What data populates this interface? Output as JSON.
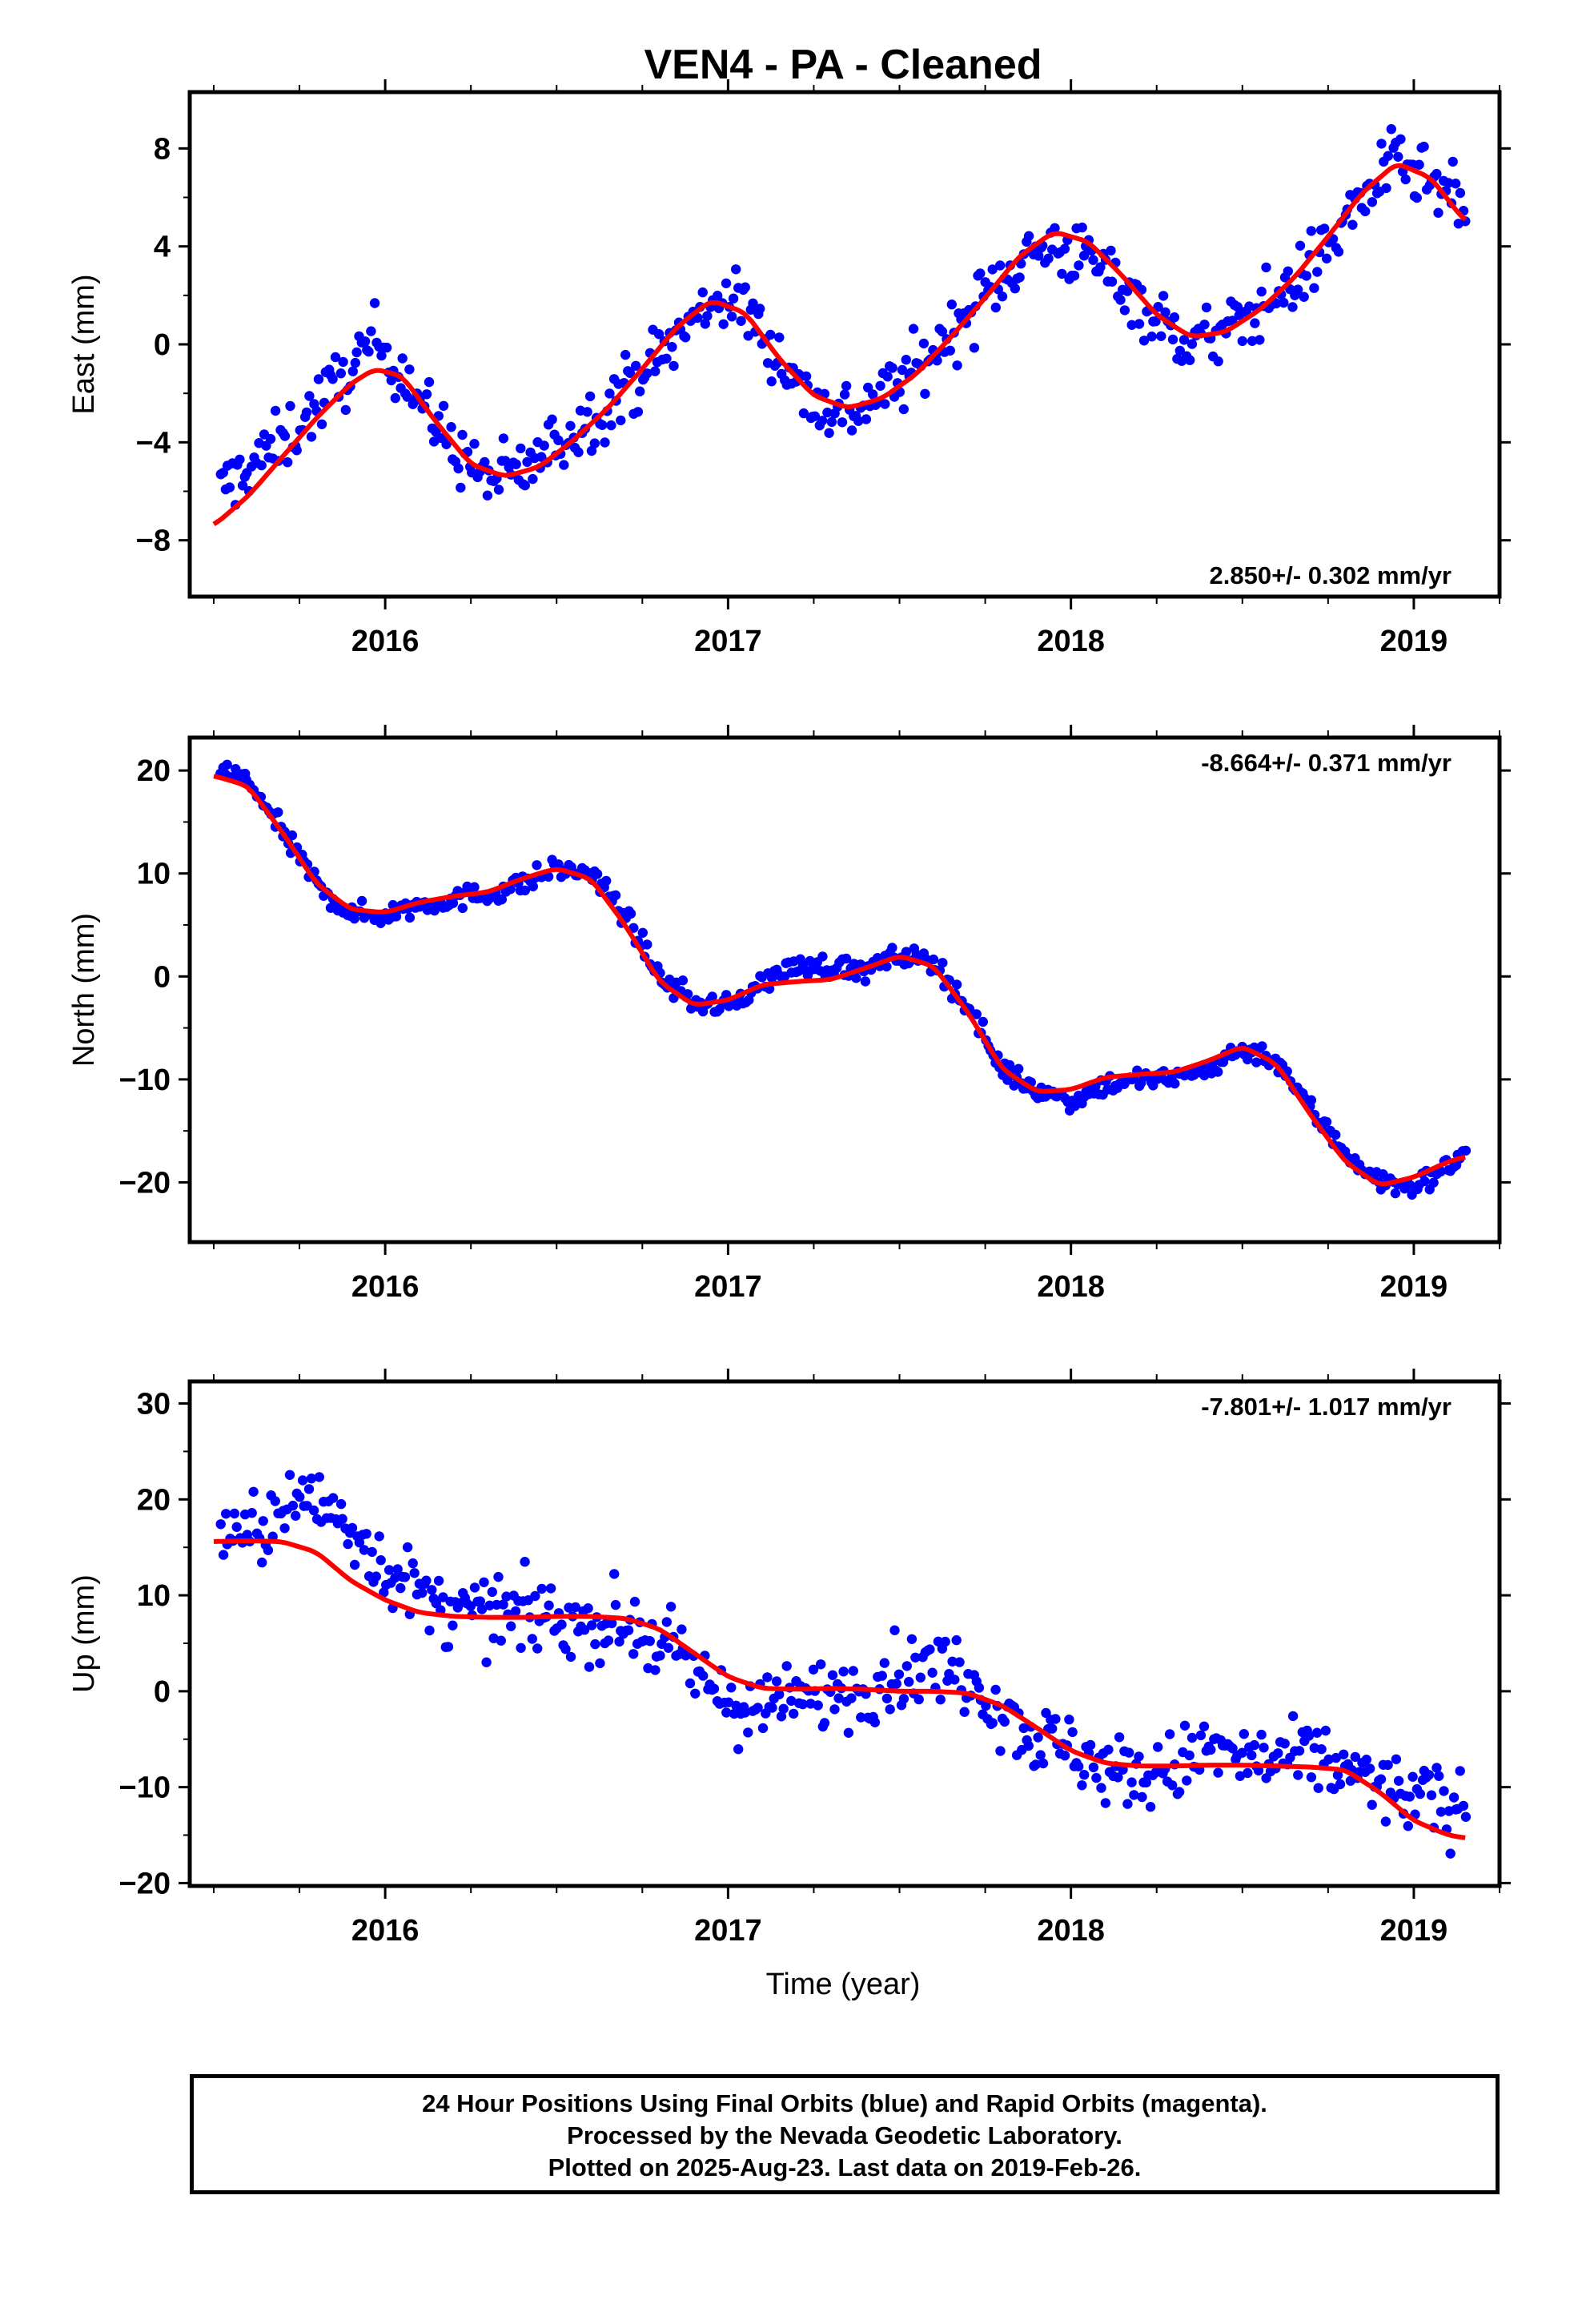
{
  "title": "VEN4  - PA - Cleaned",
  "xlabel": "Time (year)",
  "footer": {
    "line1": "24 Hour Positions Using Final Orbits (blue) and Rapid Orbits (magenta).",
    "line2": "Processed by the Nevada Geodetic Laboratory.",
    "line3": "Plotted on 2025-Aug-23. Last data on 2019-Feb-26."
  },
  "colors": {
    "points": "#0000ff",
    "fit": "#ff0000",
    "frame": "#000000"
  },
  "chart_data": [
    {
      "type": "scatter",
      "ylabel": "East (mm)",
      "rate_label": "2.850+/- 0.302 mm/yr",
      "rate_position": "bottom-right",
      "xlim": [
        2015.43,
        2019.25
      ],
      "ylim": [
        -10.3,
        10.3
      ],
      "xticks": [
        2016,
        2017,
        2018,
        2019
      ],
      "yticks": [
        -8,
        -4,
        0,
        4,
        8
      ],
      "series": [
        {
          "kind": "points",
          "scatter": 1.1,
          "x": [
            2015.52,
            2015.6,
            2015.7,
            2015.8,
            2015.9,
            2015.97,
            2016.05,
            2016.13,
            2016.22,
            2016.3,
            2016.4,
            2016.5,
            2016.6,
            2016.7,
            2016.8,
            2016.9,
            2016.97,
            2017.05,
            2017.15,
            2017.25,
            2017.35,
            2017.45,
            2017.55,
            2017.65,
            2017.75,
            2017.85,
            2017.95,
            2018.05,
            2018.15,
            2018.25,
            2018.35,
            2018.45,
            2018.55,
            2018.65,
            2018.75,
            2018.85,
            2018.95,
            2019.05,
            2019.15
          ],
          "y": [
            -6.0,
            -5.0,
            -4.0,
            -2.5,
            -1.0,
            0.2,
            -1.0,
            -3.0,
            -4.5,
            -5.5,
            -5.2,
            -4.0,
            -3.0,
            -1.8,
            -0.5,
            1.0,
            2.0,
            1.5,
            -0.5,
            -2.5,
            -2.8,
            -2.0,
            -1.0,
            0.5,
            2.0,
            3.5,
            4.0,
            3.5,
            2.5,
            1.0,
            0.0,
            0.5,
            1.5,
            2.5,
            4.0,
            6.0,
            7.5,
            6.5,
            5.5
          ]
        },
        {
          "kind": "line",
          "x": [
            2015.5,
            2015.6,
            2015.7,
            2015.8,
            2015.9,
            2015.97,
            2016.05,
            2016.15,
            2016.25,
            2016.35,
            2016.45,
            2016.55,
            2016.65,
            2016.75,
            2016.85,
            2016.95,
            2017.05,
            2017.15,
            2017.25,
            2017.35,
            2017.45,
            2017.55,
            2017.65,
            2017.75,
            2017.85,
            2017.95,
            2018.05,
            2018.15,
            2018.25,
            2018.35,
            2018.45,
            2018.55,
            2018.65,
            2018.75,
            2018.85,
            2018.95,
            2019.05,
            2019.15
          ],
          "y": [
            -7.4,
            -6.2,
            -4.6,
            -3.0,
            -1.6,
            -1.0,
            -1.3,
            -3.2,
            -4.9,
            -5.4,
            -5.0,
            -3.9,
            -2.6,
            -1.0,
            0.7,
            1.8,
            1.3,
            -0.6,
            -2.1,
            -2.6,
            -2.2,
            -1.2,
            0.3,
            1.9,
            3.6,
            4.6,
            4.2,
            2.8,
            1.2,
            0.3,
            0.5,
            1.4,
            2.7,
            4.4,
            6.2,
            7.4,
            6.8,
            5.0
          ]
        }
      ]
    },
    {
      "type": "scatter",
      "ylabel": "North (mm)",
      "rate_label": "-8.664+/- 0.371 mm/yr",
      "rate_position": "top-right",
      "xlim": [
        2015.43,
        2019.25
      ],
      "ylim": [
        -25.8,
        23.2
      ],
      "xticks": [
        2016,
        2017,
        2018,
        2019
      ],
      "yticks": [
        -20,
        -10,
        0,
        10,
        20
      ],
      "series": [
        {
          "kind": "points",
          "scatter": 0.9,
          "x": [
            2015.52,
            2015.6,
            2015.7,
            2015.8,
            2015.9,
            2016.0,
            2016.1,
            2016.2,
            2016.3,
            2016.4,
            2016.5,
            2016.6,
            2016.7,
            2016.8,
            2016.9,
            2017.0,
            2017.1,
            2017.2,
            2017.3,
            2017.4,
            2017.5,
            2017.6,
            2017.7,
            2017.8,
            2017.9,
            2018.0,
            2018.1,
            2018.2,
            2018.3,
            2018.4,
            2018.5,
            2018.6,
            2018.7,
            2018.8,
            2018.9,
            2019.0,
            2019.1,
            2019.15
          ],
          "y": [
            20.0,
            19.0,
            14.0,
            9.0,
            6.0,
            6.0,
            7.0,
            7.5,
            8.0,
            9.0,
            10.5,
            10.0,
            6.0,
            0.0,
            -2.5,
            -3.0,
            -0.5,
            1.0,
            1.0,
            0.5,
            2.0,
            1.5,
            -3.0,
            -9.0,
            -11.0,
            -12.0,
            -10.5,
            -10.0,
            -10.0,
            -9.0,
            -7.0,
            -8.0,
            -13.0,
            -17.0,
            -20.0,
            -20.5,
            -18.5,
            -17.0
          ]
        },
        {
          "kind": "line",
          "x": [
            2015.5,
            2015.6,
            2015.7,
            2015.8,
            2015.9,
            2016.0,
            2016.1,
            2016.2,
            2016.3,
            2016.4,
            2016.5,
            2016.6,
            2016.7,
            2016.8,
            2016.9,
            2017.0,
            2017.1,
            2017.2,
            2017.3,
            2017.4,
            2017.5,
            2017.6,
            2017.7,
            2017.8,
            2017.9,
            2018.0,
            2018.1,
            2018.2,
            2018.3,
            2018.4,
            2018.5,
            2018.6,
            2018.7,
            2018.8,
            2018.9,
            2019.0,
            2019.1,
            2019.15
          ],
          "y": [
            19.5,
            18.5,
            14.0,
            9.0,
            6.5,
            6.2,
            7.2,
            7.8,
            8.2,
            9.5,
            10.5,
            9.5,
            5.0,
            -0.5,
            -2.8,
            -2.3,
            -0.8,
            -0.5,
            -0.3,
            0.8,
            2.0,
            1.0,
            -3.5,
            -9.0,
            -11.2,
            -11.0,
            -9.8,
            -9.5,
            -9.3,
            -8.2,
            -6.8,
            -8.5,
            -13.5,
            -18.0,
            -20.3,
            -19.5,
            -18.0,
            -17.5
          ]
        }
      ]
    },
    {
      "type": "scatter",
      "ylabel": "Up (mm)",
      "rate_label": "-7.801+/- 1.017 mm/yr",
      "rate_position": "top-right",
      "xlim": [
        2015.43,
        2019.25
      ],
      "ylim": [
        -20.3,
        32.3
      ],
      "xticks": [
        2016,
        2017,
        2018,
        2019
      ],
      "yticks": [
        -20,
        -10,
        0,
        10,
        20,
        30
      ],
      "series": [
        {
          "kind": "points",
          "scatter": 3.2,
          "x": [
            2015.52,
            2015.6,
            2015.7,
            2015.8,
            2015.9,
            2016.0,
            2016.1,
            2016.2,
            2016.3,
            2016.4,
            2016.5,
            2016.6,
            2016.7,
            2016.8,
            2016.9,
            2017.0,
            2017.1,
            2017.2,
            2017.3,
            2017.4,
            2017.5,
            2017.6,
            2017.7,
            2017.8,
            2017.9,
            2018.0,
            2018.1,
            2018.2,
            2018.3,
            2018.4,
            2018.5,
            2018.6,
            2018.7,
            2018.8,
            2018.9,
            2019.0,
            2019.1,
            2019.15
          ],
          "y": [
            17.0,
            16.0,
            19.0,
            20.0,
            17.0,
            13.0,
            10.0,
            8.0,
            8.0,
            8.0,
            7.5,
            7.0,
            7.0,
            5.0,
            2.0,
            -1.0,
            -2.0,
            -1.0,
            0.0,
            0.5,
            2.0,
            2.5,
            2.0,
            -2.0,
            -5.0,
            -6.0,
            -8.0,
            -9.0,
            -8.0,
            -6.0,
            -7.0,
            -7.5,
            -7.0,
            -8.0,
            -10.0,
            -11.0,
            -12.0,
            -12.0
          ]
        },
        {
          "kind": "line",
          "x": [
            2015.5,
            2015.6,
            2015.7,
            2015.8,
            2015.9,
            2016.0,
            2016.1,
            2016.2,
            2016.3,
            2016.4,
            2016.5,
            2016.6,
            2016.7,
            2016.8,
            2016.9,
            2017.0,
            2017.1,
            2017.2,
            2017.3,
            2017.4,
            2017.5,
            2017.6,
            2017.7,
            2017.8,
            2017.9,
            2018.0,
            2018.1,
            2018.2,
            2018.3,
            2018.4,
            2018.5,
            2018.6,
            2018.7,
            2018.8,
            2018.9,
            2019.0,
            2019.1,
            2019.15
          ],
          "y": [
            15.6,
            15.7,
            15.6,
            14.5,
            11.5,
            9.5,
            8.2,
            7.8,
            7.7,
            7.7,
            7.8,
            7.8,
            7.6,
            6.5,
            4.0,
            1.5,
            0.3,
            0.2,
            0.3,
            0.2,
            0.0,
            0.0,
            -0.2,
            -1.5,
            -3.8,
            -6.2,
            -7.5,
            -7.8,
            -7.8,
            -7.7,
            -7.7,
            -7.8,
            -7.9,
            -8.2,
            -10.5,
            -13.5,
            -15.0,
            -15.3
          ]
        }
      ]
    }
  ]
}
